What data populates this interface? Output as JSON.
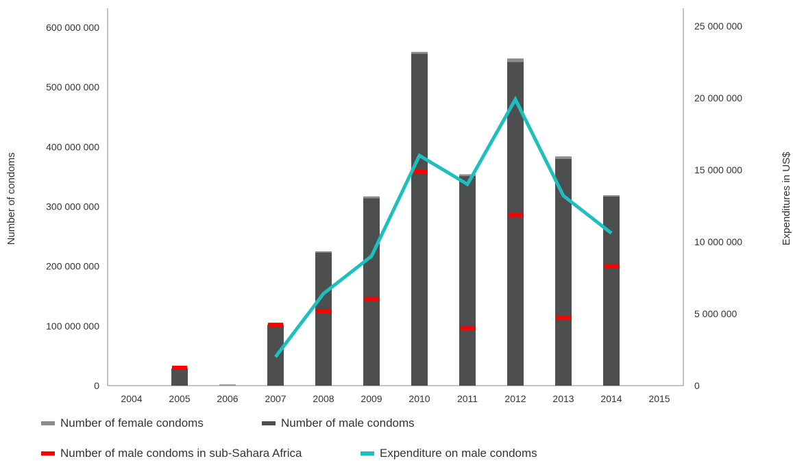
{
  "chart_data": {
    "type": "bar",
    "categories": [
      "2004",
      "2005",
      "2006",
      "2007",
      "2008",
      "2009",
      "2010",
      "2011",
      "2012",
      "2013",
      "2014",
      "2015"
    ],
    "series": [
      {
        "name": "Number of male condoms",
        "kind": "bar-stack-bottom",
        "color": "#4d4e4e",
        "values": [
          0,
          29000000,
          0,
          102000000,
          223000000,
          314000000,
          556000000,
          351000000,
          542000000,
          380000000,
          317000000,
          0
        ]
      },
      {
        "name": "Number of female condoms",
        "kind": "bar-stack-top",
        "color": "#8c8c8c",
        "values": [
          0,
          0,
          2000000,
          1000000,
          2000000,
          3000000,
          3000000,
          3000000,
          6000000,
          4000000,
          2000000,
          0
        ]
      },
      {
        "name": "Number of male condoms in sub-Sahara Africa",
        "kind": "marker",
        "color": "#ff0000",
        "values": [
          null,
          30000000,
          null,
          102000000,
          125000000,
          145000000,
          359000000,
          96000000,
          286000000,
          114000000,
          200000000,
          null
        ]
      },
      {
        "name": "Expenditure on male condoms",
        "kind": "line",
        "axis": "right",
        "color": "#1dbfbf",
        "values": [
          null,
          null,
          null,
          2000000,
          6400000,
          9000000,
          16000000,
          14000000,
          19900000,
          13200000,
          10600000,
          null
        ]
      }
    ],
    "ylabel": "Number of condoms",
    "y2label": "Expenditures in US$",
    "ylim": [
      0,
      600000000
    ],
    "y2lim": [
      0,
      25000000
    ],
    "yticks": [
      "0",
      "100 000 000",
      "200 000 000",
      "300 000 000",
      "400 000 000",
      "500 000 000",
      "600 000 000"
    ],
    "y2ticks": [
      "0",
      "5 000 000",
      "10 000 000",
      "15 000 000",
      "20 000 000",
      "25 000 000"
    ],
    "grid": false,
    "legend_position": "bottom"
  },
  "legend": {
    "female": "Number of female condoms",
    "male": "Number of male condoms",
    "ssa": "Number of male condoms in sub-Sahara Africa",
    "expenditure": "Expenditure on male condoms"
  }
}
